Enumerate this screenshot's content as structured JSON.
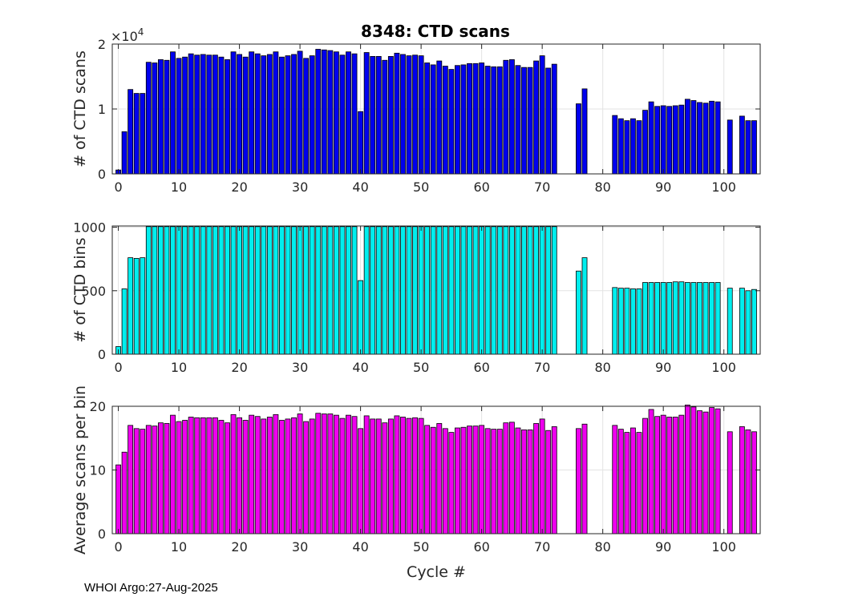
{
  "title": "8348: CTD scans",
  "footer": "WHOI Argo:27-Aug-2025",
  "chart_data": [
    {
      "type": "bar",
      "id": "scans",
      "ylabel": "# of CTD scans",
      "xlabel": "",
      "color": "#0000ee",
      "xlim": [
        -1,
        106
      ],
      "ylim": [
        0,
        20000
      ],
      "xticks": [
        0,
        10,
        20,
        30,
        40,
        50,
        60,
        70,
        80,
        90,
        100
      ],
      "yticks": [
        0,
        10000,
        20000
      ],
      "ytick_labels": [
        "0",
        "1",
        "2"
      ],
      "exponent_label": "×10",
      "exponent_power": "4",
      "grid": true,
      "x": [
        0,
        1,
        2,
        3,
        4,
        5,
        6,
        7,
        8,
        9,
        10,
        11,
        12,
        13,
        14,
        15,
        16,
        17,
        18,
        19,
        20,
        21,
        22,
        23,
        24,
        25,
        26,
        27,
        28,
        29,
        30,
        31,
        32,
        33,
        34,
        35,
        36,
        37,
        38,
        39,
        40,
        41,
        42,
        43,
        44,
        45,
        46,
        47,
        48,
        49,
        50,
        51,
        52,
        53,
        54,
        55,
        56,
        57,
        58,
        59,
        60,
        61,
        62,
        63,
        64,
        65,
        66,
        67,
        68,
        69,
        70,
        71,
        72,
        76,
        77,
        82,
        83,
        84,
        85,
        86,
        87,
        88,
        89,
        90,
        91,
        92,
        93,
        94,
        95,
        96,
        97,
        98,
        99,
        101,
        103,
        104,
        105
      ],
      "values": [
        600,
        6500,
        13000,
        12400,
        12400,
        17200,
        17100,
        17600,
        17500,
        18800,
        17800,
        18000,
        18500,
        18300,
        18400,
        18300,
        18300,
        18000,
        17600,
        18800,
        18400,
        18000,
        18800,
        18500,
        18200,
        18400,
        18800,
        18000,
        18200,
        18400,
        18900,
        17800,
        18200,
        19200,
        19100,
        19000,
        18800,
        18300,
        18800,
        18500,
        9600,
        18700,
        18100,
        18100,
        17500,
        18100,
        18600,
        18400,
        18200,
        18300,
        18200,
        17100,
        16800,
        17400,
        16600,
        16100,
        16700,
        16800,
        17000,
        17000,
        17100,
        16600,
        16500,
        16500,
        17500,
        17600,
        16700,
        16400,
        16400,
        17400,
        18200,
        16300,
        16900,
        10800,
        13100,
        9000,
        8500,
        8200,
        8500,
        8200,
        9800,
        11100,
        10400,
        10500,
        10400,
        10500,
        10600,
        11500,
        11300,
        11000,
        10900,
        11200,
        11100,
        8300,
        8900,
        8200,
        8200
      ]
    },
    {
      "type": "bar",
      "id": "bins",
      "ylabel": "# of CTD bins",
      "xlabel": "",
      "color": "#00eeee",
      "xlim": [
        -1,
        106
      ],
      "ylim": [
        0,
        1010
      ],
      "xticks": [
        0,
        10,
        20,
        30,
        40,
        50,
        60,
        70,
        80,
        90,
        100
      ],
      "yticks": [
        0,
        500,
        1000
      ],
      "ytick_labels": [
        "0",
        "500",
        "1000"
      ],
      "grid": true,
      "x": [
        0,
        1,
        2,
        3,
        4,
        5,
        6,
        7,
        8,
        9,
        10,
        11,
        12,
        13,
        14,
        15,
        16,
        17,
        18,
        19,
        20,
        21,
        22,
        23,
        24,
        25,
        26,
        27,
        28,
        29,
        30,
        31,
        32,
        33,
        34,
        35,
        36,
        37,
        38,
        39,
        40,
        41,
        42,
        43,
        44,
        45,
        46,
        47,
        48,
        49,
        50,
        51,
        52,
        53,
        54,
        55,
        56,
        57,
        58,
        59,
        60,
        61,
        62,
        63,
        64,
        65,
        66,
        67,
        68,
        69,
        70,
        71,
        72,
        76,
        77,
        82,
        83,
        84,
        85,
        86,
        87,
        88,
        89,
        90,
        91,
        92,
        93,
        94,
        95,
        96,
        97,
        98,
        99,
        101,
        103,
        104,
        105
      ],
      "values": [
        60,
        515,
        760,
        755,
        760,
        1005,
        1005,
        1005,
        1005,
        1005,
        1005,
        1005,
        1005,
        1005,
        1005,
        1005,
        1005,
        1005,
        1005,
        1005,
        1005,
        1005,
        1005,
        1005,
        1005,
        1005,
        1005,
        1005,
        1005,
        1005,
        1005,
        1005,
        1005,
        1005,
        1005,
        1005,
        1005,
        1005,
        1005,
        1005,
        580,
        1005,
        1005,
        1005,
        1005,
        1005,
        1005,
        1005,
        1005,
        1005,
        1005,
        1005,
        1005,
        1005,
        1005,
        1005,
        1005,
        1005,
        1005,
        1005,
        1005,
        1005,
        1005,
        1005,
        1005,
        1005,
        1005,
        1005,
        1005,
        1005,
        1005,
        1005,
        1005,
        655,
        760,
        525,
        520,
        520,
        515,
        515,
        565,
        565,
        565,
        565,
        565,
        570,
        570,
        565,
        565,
        565,
        565,
        565,
        565,
        520,
        520,
        500,
        510
      ]
    },
    {
      "type": "bar",
      "id": "avg",
      "ylabel": "Average scans per bin",
      "xlabel": "Cycle #",
      "color": "#ee00ee",
      "xlim": [
        -1,
        106
      ],
      "ylim": [
        0,
        20
      ],
      "xticks": [
        0,
        10,
        20,
        30,
        40,
        50,
        60,
        70,
        80,
        90,
        100
      ],
      "yticks": [
        0,
        10,
        20
      ],
      "ytick_labels": [
        "0",
        "10",
        "20"
      ],
      "grid": true,
      "x": [
        0,
        1,
        2,
        3,
        4,
        5,
        6,
        7,
        8,
        9,
        10,
        11,
        12,
        13,
        14,
        15,
        16,
        17,
        18,
        19,
        20,
        21,
        22,
        23,
        24,
        25,
        26,
        27,
        28,
        29,
        30,
        31,
        32,
        33,
        34,
        35,
        36,
        37,
        38,
        39,
        40,
        41,
        42,
        43,
        44,
        45,
        46,
        47,
        48,
        49,
        50,
        51,
        52,
        53,
        54,
        55,
        56,
        57,
        58,
        59,
        60,
        61,
        62,
        63,
        64,
        65,
        66,
        67,
        68,
        69,
        70,
        71,
        72,
        76,
        77,
        82,
        83,
        84,
        85,
        86,
        87,
        88,
        89,
        90,
        91,
        92,
        93,
        94,
        95,
        96,
        97,
        98,
        99,
        101,
        103,
        104,
        105
      ],
      "values": [
        10.8,
        12.8,
        17.0,
        16.5,
        16.4,
        17.0,
        16.9,
        17.4,
        17.3,
        18.6,
        17.6,
        17.8,
        18.3,
        18.2,
        18.2,
        18.2,
        18.2,
        17.8,
        17.4,
        18.7,
        18.2,
        17.8,
        18.6,
        18.4,
        18.0,
        18.3,
        18.7,
        17.8,
        18.0,
        18.2,
        18.8,
        17.6,
        18.0,
        18.9,
        18.8,
        18.8,
        18.6,
        18.1,
        18.6,
        18.4,
        16.5,
        18.5,
        18.0,
        18.0,
        17.4,
        18.0,
        18.5,
        18.3,
        18.1,
        18.2,
        18.1,
        17.0,
        16.7,
        17.3,
        16.5,
        15.9,
        16.6,
        16.7,
        16.9,
        16.9,
        17.0,
        16.5,
        16.4,
        16.4,
        17.4,
        17.5,
        16.6,
        16.3,
        16.3,
        17.3,
        18.0,
        16.2,
        16.8,
        16.5,
        17.2,
        17.0,
        16.4,
        15.9,
        16.6,
        15.9,
        18.1,
        19.5,
        18.4,
        18.6,
        18.3,
        18.3,
        18.6,
        20.2,
        19.9,
        19.3,
        19.1,
        19.8,
        19.6,
        16.0,
        16.8,
        16.3,
        16.0
      ]
    }
  ]
}
